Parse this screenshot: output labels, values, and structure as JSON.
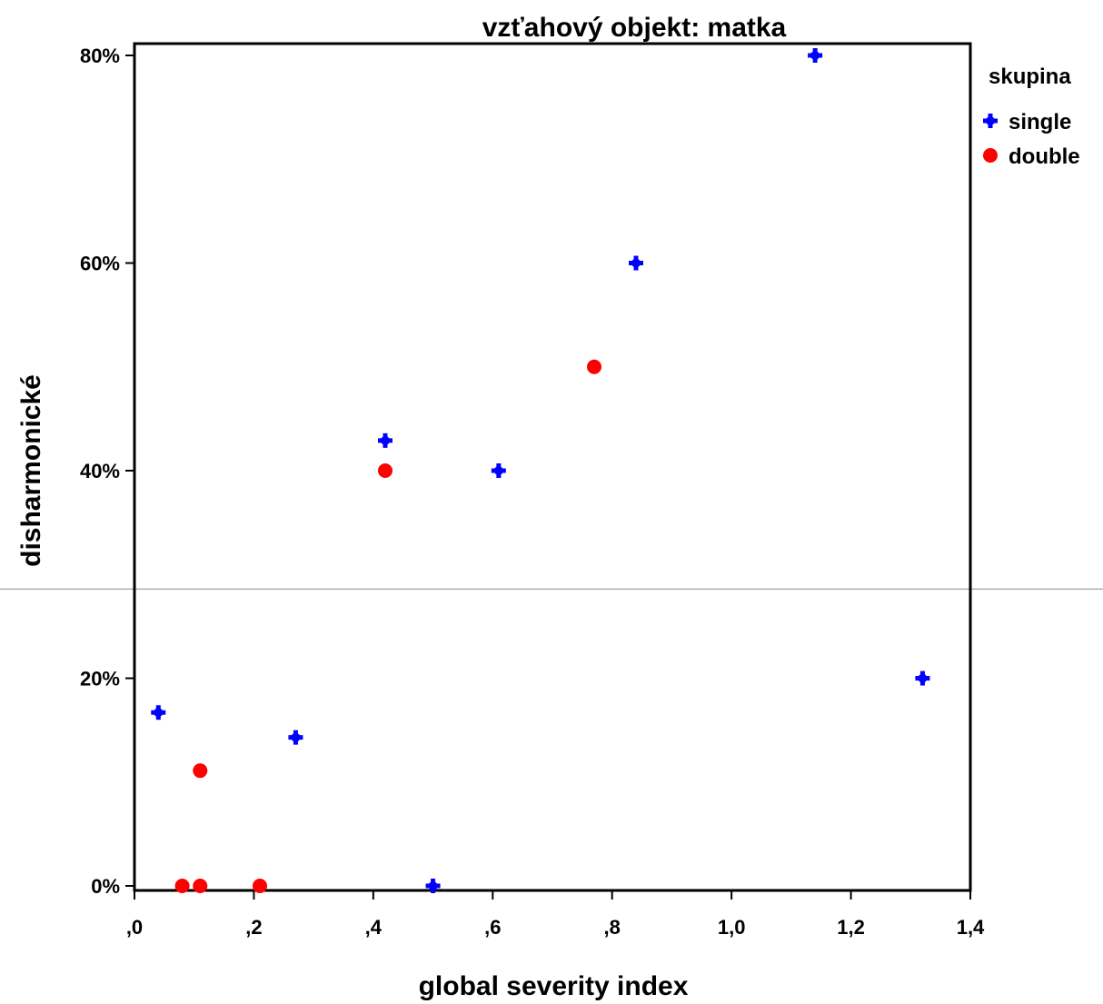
{
  "chart_data": {
    "type": "scatter",
    "title": "vzťahový objekt: matka",
    "xlabel": "global severity index",
    "ylabel": "disharmonické",
    "xlim": [
      0,
      1.4
    ],
    "ylim": [
      0,
      80
    ],
    "x_ticks": [
      {
        "value": 0,
        "label": ",0"
      },
      {
        "value": 0.2,
        "label": ",2"
      },
      {
        "value": 0.4,
        "label": ",4"
      },
      {
        "value": 0.6,
        "label": ",6"
      },
      {
        "value": 0.8,
        "label": ",8"
      },
      {
        "value": 1.0,
        "label": "1,0"
      },
      {
        "value": 1.2,
        "label": "1,2"
      },
      {
        "value": 1.4,
        "label": "1,4"
      }
    ],
    "y_ticks": [
      {
        "value": 0,
        "label": "0%"
      },
      {
        "value": 20,
        "label": "20%"
      },
      {
        "value": 40,
        "label": "40%"
      },
      {
        "value": 60,
        "label": "60%"
      },
      {
        "value": 80,
        "label": "80%"
      }
    ],
    "grid": false,
    "reference_line_y": 28.6,
    "legend": {
      "title": "skupina",
      "placement": "right"
    },
    "series": [
      {
        "name": "single",
        "color": "#0000ff",
        "marker": "plus",
        "points": [
          {
            "x": 0.04,
            "y": 16.7
          },
          {
            "x": 0.27,
            "y": 14.3
          },
          {
            "x": 0.42,
            "y": 42.9
          },
          {
            "x": 0.5,
            "y": 0
          },
          {
            "x": 0.61,
            "y": 40
          },
          {
            "x": 0.84,
            "y": 60
          },
          {
            "x": 1.14,
            "y": 80
          },
          {
            "x": 1.32,
            "y": 20
          }
        ]
      },
      {
        "name": "double",
        "color": "#ff0000",
        "marker": "circle",
        "points": [
          {
            "x": 0.08,
            "y": 0
          },
          {
            "x": 0.11,
            "y": 0
          },
          {
            "x": 0.11,
            "y": 11.1
          },
          {
            "x": 0.21,
            "y": 0
          },
          {
            "x": 0.42,
            "y": 40
          },
          {
            "x": 0.77,
            "y": 50
          }
        ]
      }
    ]
  }
}
